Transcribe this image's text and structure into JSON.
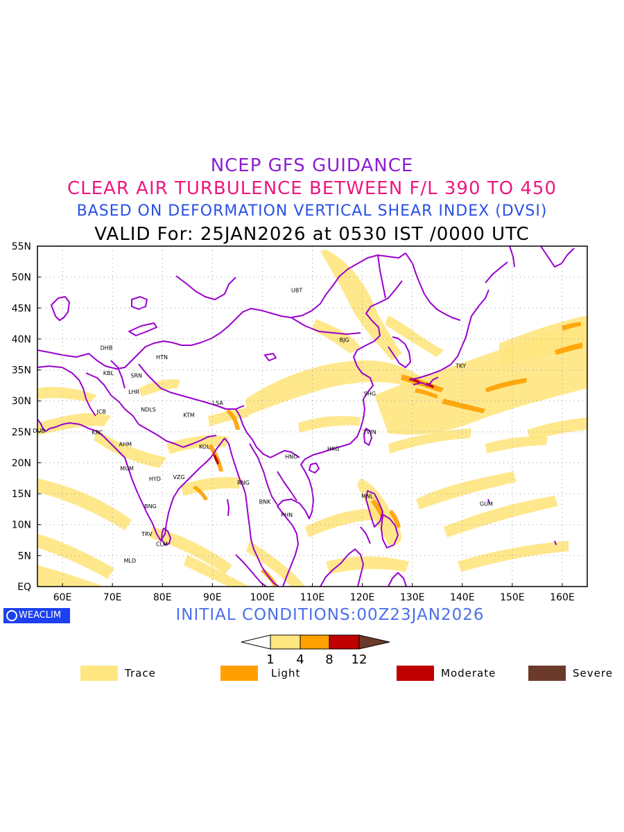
{
  "titles": {
    "line1": "NCEP GFS GUIDANCE",
    "line2": "CLEAR AIR TURBULENCE BETWEEN F/L 390 TO 450",
    "line3": "BASED ON DEFORMATION VERTICAL SHEAR INDEX (DVSI)",
    "line4": "VALID For: 25JAN2026 at 0530 IST /0000 UTC"
  },
  "axes": {
    "lat_labels": [
      "55N",
      "50N",
      "45N",
      "40N",
      "35N",
      "30N",
      "25N",
      "20N",
      "15N",
      "10N",
      "5N",
      "EQ"
    ],
    "lon_labels": [
      "60E",
      "70E",
      "80E",
      "90E",
      "100E",
      "110E",
      "120E",
      "130E",
      "140E",
      "150E",
      "160E"
    ]
  },
  "stations": [
    {
      "code": "UBT",
      "lon": 106.9,
      "lat": 47.9
    },
    {
      "code": "BJG",
      "lon": 116.4,
      "lat": 39.9
    },
    {
      "code": "TKY",
      "lon": 139.7,
      "lat": 35.7
    },
    {
      "code": "SHG",
      "lon": 121.5,
      "lat": 31.2
    },
    {
      "code": "TWN",
      "lon": 121.5,
      "lat": 25.0
    },
    {
      "code": "HKG",
      "lon": 114.2,
      "lat": 22.3
    },
    {
      "code": "HNO",
      "lon": 105.8,
      "lat": 21.0
    },
    {
      "code": "RNG",
      "lon": 96.2,
      "lat": 16.8
    },
    {
      "code": "BNK",
      "lon": 100.5,
      "lat": 13.7
    },
    {
      "code": "PHN",
      "lon": 104.9,
      "lat": 11.6
    },
    {
      "code": "MNL",
      "lon": 121.0,
      "lat": 14.6
    },
    {
      "code": "GUM",
      "lon": 144.8,
      "lat": 13.4
    },
    {
      "code": "LSA",
      "lon": 91.1,
      "lat": 29.7
    },
    {
      "code": "KTM",
      "lon": 85.3,
      "lat": 27.7
    },
    {
      "code": "KOL",
      "lon": 88.4,
      "lat": 22.6
    },
    {
      "code": "HTN",
      "lon": 79.9,
      "lat": 37.1
    },
    {
      "code": "DHB",
      "lon": 68.8,
      "lat": 38.6
    },
    {
      "code": "KBL",
      "lon": 69.2,
      "lat": 34.5
    },
    {
      "code": "SRN",
      "lon": 74.8,
      "lat": 34.1
    },
    {
      "code": "LHR",
      "lon": 74.3,
      "lat": 31.5
    },
    {
      "code": "NDLS",
      "lon": 77.2,
      "lat": 28.6
    },
    {
      "code": "JCB",
      "lon": 67.8,
      "lat": 28.3
    },
    {
      "code": "KRC",
      "lon": 67.0,
      "lat": 24.9
    },
    {
      "code": "DUB",
      "lon": 55.3,
      "lat": 25.2
    },
    {
      "code": "AHM",
      "lon": 72.6,
      "lat": 23.0
    },
    {
      "code": "MUM",
      "lon": 72.9,
      "lat": 19.1
    },
    {
      "code": "HYD",
      "lon": 78.5,
      "lat": 17.4
    },
    {
      "code": "VZG",
      "lon": 83.3,
      "lat": 17.7
    },
    {
      "code": "BNG",
      "lon": 77.6,
      "lat": 13.0
    },
    {
      "code": "TRV",
      "lon": 76.9,
      "lat": 8.5
    },
    {
      "code": "CLM",
      "lon": 79.9,
      "lat": 6.9
    },
    {
      "code": "MLD",
      "lon": 73.5,
      "lat": 4.2
    }
  ],
  "logo": {
    "text": "WEACLIM"
  },
  "initial_conditions": "INITIAL CONDITIONS:00Z23JAN2026",
  "colorbar": {
    "ticks": [
      "1",
      "4",
      "8",
      "12"
    ],
    "colors": [
      "#ffffff",
      "#ffe680",
      "#ffa000",
      "#c00000",
      "#6b3a2a"
    ]
  },
  "legend": [
    {
      "label": "Trace",
      "color": "#ffe680"
    },
    {
      "label": "Light",
      "color": "#ffa000"
    },
    {
      "label": "Moderate",
      "color": "#c00000"
    },
    {
      "label": "Severe",
      "color": "#6b3a2a"
    }
  ],
  "colors": {
    "coast": "#9900cc",
    "grid": "#999999"
  }
}
